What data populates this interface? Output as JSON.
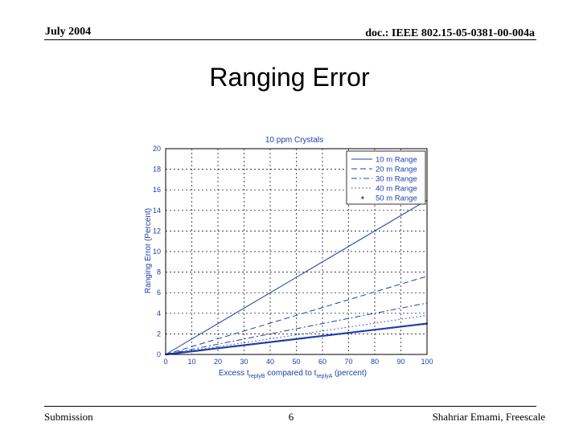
{
  "header": {
    "date": "July 2004",
    "doc_id": "doc.: IEEE 802.15-05-0381-00-004a"
  },
  "slide": {
    "title": "Ranging Error"
  },
  "footer": {
    "left": "Submission",
    "page_number": "6",
    "author": "Shahriar Emami, Freescale"
  },
  "chart_data": {
    "type": "line",
    "title": "10 ppm Crystals",
    "ylabel": "Ranging Error (Percent)",
    "xlabel": {
      "prefix": "Excess t",
      "sub1": "replyB",
      "middle": " compared to t",
      "sub2": "replyA",
      "suffix": " (percent)"
    },
    "xlim": [
      0,
      100
    ],
    "ylim": [
      0,
      20
    ],
    "xticks": [
      0,
      10,
      20,
      30,
      40,
      50,
      60,
      70,
      80,
      90,
      100
    ],
    "yticks": [
      0,
      2,
      4,
      6,
      8,
      10,
      12,
      14,
      16,
      18,
      20
    ],
    "grid": true,
    "legend_position": "top-right",
    "colors": {
      "series": "#1f3fa8",
      "axis": "#000000"
    },
    "series": [
      {
        "name": "10 m Range",
        "style": "solid",
        "x": [
          0,
          100
        ],
        "y": [
          0,
          15
        ]
      },
      {
        "name": "20 m Range",
        "style": "dashed",
        "x": [
          0,
          100
        ],
        "y": [
          0,
          7.6
        ]
      },
      {
        "name": "30 m Range",
        "style": "dashdot",
        "x": [
          0,
          100
        ],
        "y": [
          0,
          5
        ]
      },
      {
        "name": "40 m Range",
        "style": "dotted",
        "x": [
          0,
          100
        ],
        "y": [
          0,
          3.8
        ]
      },
      {
        "name": "50 m Range",
        "style": "marker",
        "x": [
          0,
          100
        ],
        "y": [
          0,
          3
        ]
      }
    ]
  }
}
